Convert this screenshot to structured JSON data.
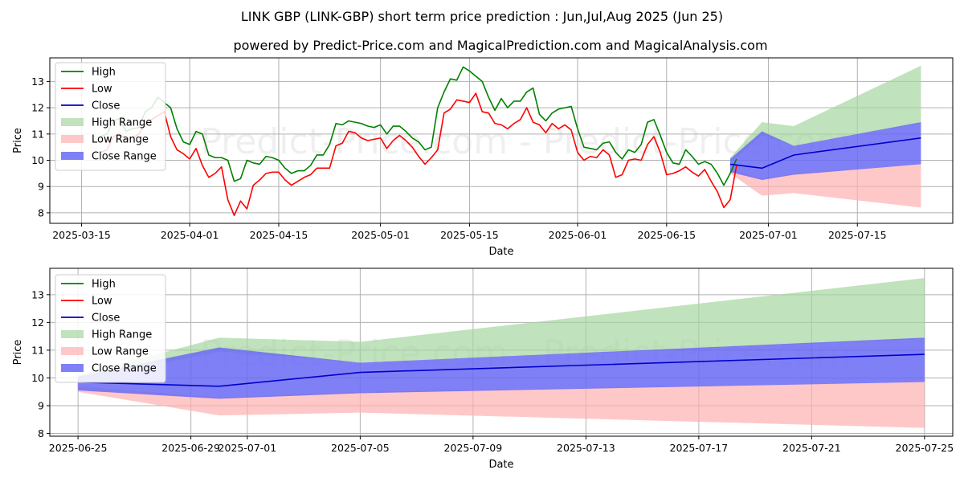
{
  "title": "LINK GBP (LINK-GBP) short term price prediction : Jun,Jul,Aug 2025 (Jun 25)",
  "subtitle": "powered by Predict-Price.com and MagicalPrediction.com and MagicalAnalysis.com",
  "watermark": "Predict-Price.com - Predict-Price.com",
  "colors": {
    "high": "#008000",
    "low": "#ff0000",
    "close": "#0000cc",
    "high_range": "#a5d6a0",
    "low_range": "#ffb0b0",
    "close_range": "#6a6af5"
  },
  "chart_data": [
    {
      "type": "line",
      "name": "full-history-and-forecast",
      "xlabel": "Date",
      "ylabel": "Price",
      "x_range": [
        "2025-03-10",
        "2025-07-30"
      ],
      "ylim": [
        7.6,
        13.9
      ],
      "yticks": [
        8,
        9,
        10,
        11,
        12,
        13
      ],
      "xticks": [
        {
          "date": "2025-03-15",
          "label": "2025-03-15"
        },
        {
          "date": "2025-04-01",
          "label": "2025-04-01"
        },
        {
          "date": "2025-04-15",
          "label": "2025-04-15"
        },
        {
          "date": "2025-05-01",
          "label": "2025-05-01"
        },
        {
          "date": "2025-05-15",
          "label": "2025-05-15"
        },
        {
          "date": "2025-06-01",
          "label": "2025-06-01"
        },
        {
          "date": "2025-06-15",
          "label": "2025-06-15"
        },
        {
          "date": "2025-07-01",
          "label": "2025-07-01"
        },
        {
          "date": "2025-07-15",
          "label": "2025-07-15"
        }
      ],
      "legend": [
        {
          "label": "High",
          "kind": "line",
          "series": "high"
        },
        {
          "label": "Low",
          "kind": "line",
          "series": "low"
        },
        {
          "label": "Close",
          "kind": "line",
          "series": "close"
        },
        {
          "label": "High Range",
          "kind": "patch",
          "series": "high_range"
        },
        {
          "label": "Low Range",
          "kind": "patch",
          "series": "low_range"
        },
        {
          "label": "Close Range",
          "kind": "patch",
          "series": "close_range"
        }
      ],
      "series": [
        {
          "name": "High",
          "key": "high",
          "start": "2025-03-18",
          "values": [
            10.9,
            11.0,
            11.5,
            11.6,
            11.1,
            11.2,
            11.25,
            11.85,
            12.0,
            12.4,
            12.2,
            12.0,
            11.2,
            10.7,
            10.6,
            11.1,
            11.0,
            10.2,
            10.1,
            10.1,
            10.0,
            9.2,
            9.3,
            10.0,
            9.9,
            9.85,
            10.15,
            10.1,
            10.0,
            9.7,
            9.5,
            9.6,
            9.6,
            9.8,
            10.2,
            10.2,
            10.6,
            11.4,
            11.35,
            11.5,
            11.45,
            11.4,
            11.3,
            11.25,
            11.35,
            11.0,
            11.3,
            11.3,
            11.1,
            10.85,
            10.7,
            10.4,
            10.5,
            12.0,
            12.6,
            13.1,
            13.05,
            13.55,
            13.4,
            13.2,
            13.0,
            12.4,
            11.9,
            12.35,
            12.0,
            12.25,
            12.25,
            12.6,
            12.75,
            11.75,
            11.5,
            11.8,
            11.95,
            12.0,
            12.05,
            11.2,
            10.5,
            10.45,
            10.4,
            10.65,
            10.7,
            10.3,
            10.05,
            10.4,
            10.3,
            10.6,
            11.45,
            11.55,
            10.95,
            10.3,
            9.9,
            9.85,
            10.4,
            10.15,
            9.85,
            9.95,
            9.85,
            9.5,
            9.05,
            9.5,
            10.05
          ]
        },
        {
          "name": "Low",
          "key": "low",
          "start": "2025-03-18",
          "values": [
            10.3,
            10.4,
            10.9,
            11.0,
            10.8,
            10.85,
            11.0,
            11.35,
            11.55,
            11.7,
            11.85,
            10.9,
            10.4,
            10.25,
            10.05,
            10.45,
            9.8,
            9.35,
            9.5,
            9.75,
            8.5,
            7.9,
            8.45,
            8.15,
            9.05,
            9.25,
            9.5,
            9.55,
            9.55,
            9.25,
            9.05,
            9.2,
            9.35,
            9.45,
            9.7,
            9.7,
            9.7,
            10.55,
            10.65,
            11.1,
            11.05,
            10.85,
            10.75,
            10.8,
            10.85,
            10.45,
            10.75,
            10.95,
            10.75,
            10.5,
            10.15,
            9.85,
            10.1,
            10.4,
            11.8,
            11.95,
            12.3,
            12.25,
            12.2,
            12.55,
            11.85,
            11.8,
            11.4,
            11.35,
            11.2,
            11.4,
            11.55,
            12.0,
            11.45,
            11.35,
            11.05,
            11.4,
            11.2,
            11.35,
            11.15,
            10.3,
            10.0,
            10.15,
            10.1,
            10.4,
            10.2,
            9.35,
            9.45,
            10.0,
            10.05,
            10.0,
            10.6,
            10.9,
            10.3,
            9.45,
            9.5,
            9.6,
            9.75,
            9.55,
            9.4,
            9.65,
            9.2,
            8.8,
            8.2,
            8.5,
            9.8
          ]
        },
        {
          "name": "Close",
          "key": "close",
          "dates": [
            "2025-06-25",
            "2025-06-30",
            "2025-07-05",
            "2025-07-25"
          ],
          "values": [
            9.85,
            9.7,
            10.2,
            10.85
          ]
        }
      ],
      "ranges": [
        {
          "name": "High Range",
          "key": "high_range",
          "dates": [
            "2025-06-25",
            "2025-06-30",
            "2025-07-05",
            "2025-07-25"
          ],
          "upper": [
            10.1,
            11.45,
            11.3,
            13.6
          ],
          "lower": [
            9.9,
            10.95,
            10.55,
            11.4
          ]
        },
        {
          "name": "Low Range",
          "key": "low_range",
          "dates": [
            "2025-06-25",
            "2025-06-30",
            "2025-07-05",
            "2025-07-25"
          ],
          "upper": [
            9.7,
            9.3,
            9.5,
            9.85
          ],
          "lower": [
            9.5,
            8.65,
            8.75,
            8.2
          ]
        },
        {
          "name": "Close Range",
          "key": "close_range",
          "dates": [
            "2025-06-25",
            "2025-06-30",
            "2025-07-05",
            "2025-07-25"
          ],
          "upper": [
            10.05,
            11.1,
            10.55,
            11.45
          ],
          "lower": [
            9.55,
            9.25,
            9.45,
            9.85
          ]
        }
      ]
    },
    {
      "type": "line",
      "name": "forecast-zoom",
      "xlabel": "Date",
      "ylabel": "Price",
      "x_range": [
        "2025-06-24",
        "2025-07-26"
      ],
      "ylim": [
        7.9,
        13.95
      ],
      "yticks": [
        8,
        9,
        10,
        11,
        12,
        13
      ],
      "xticks": [
        {
          "date": "2025-06-25",
          "label": "2025-06-25"
        },
        {
          "date": "2025-06-29",
          "label": "2025-06-29"
        },
        {
          "date": "2025-07-01",
          "label": "2025-07-01"
        },
        {
          "date": "2025-07-05",
          "label": "2025-07-05"
        },
        {
          "date": "2025-07-09",
          "label": "2025-07-09"
        },
        {
          "date": "2025-07-13",
          "label": "2025-07-13"
        },
        {
          "date": "2025-07-17",
          "label": "2025-07-17"
        },
        {
          "date": "2025-07-21",
          "label": "2025-07-21"
        },
        {
          "date": "2025-07-25",
          "label": "2025-07-25"
        }
      ],
      "legend": [
        {
          "label": "High",
          "kind": "line",
          "series": "high"
        },
        {
          "label": "Low",
          "kind": "line",
          "series": "low"
        },
        {
          "label": "Close",
          "kind": "line",
          "series": "close"
        },
        {
          "label": "High Range",
          "kind": "patch",
          "series": "high_range"
        },
        {
          "label": "Low Range",
          "kind": "patch",
          "series": "low_range"
        },
        {
          "label": "Close Range",
          "kind": "patch",
          "series": "close_range"
        }
      ],
      "series": [
        {
          "name": "Close",
          "key": "close",
          "dates": [
            "2025-06-25",
            "2025-06-30",
            "2025-07-05",
            "2025-07-25"
          ],
          "values": [
            9.85,
            9.7,
            10.2,
            10.85
          ]
        }
      ],
      "ranges": [
        {
          "name": "High Range",
          "key": "high_range",
          "dates": [
            "2025-06-25",
            "2025-06-30",
            "2025-07-05",
            "2025-07-25"
          ],
          "upper": [
            10.1,
            11.45,
            11.3,
            13.6
          ],
          "lower": [
            9.9,
            10.95,
            10.55,
            11.4
          ]
        },
        {
          "name": "Low Range",
          "key": "low_range",
          "dates": [
            "2025-06-25",
            "2025-06-30",
            "2025-07-05",
            "2025-07-25"
          ],
          "upper": [
            9.7,
            9.3,
            9.5,
            9.85
          ],
          "lower": [
            9.5,
            8.65,
            8.75,
            8.2
          ]
        },
        {
          "name": "Close Range",
          "key": "close_range",
          "dates": [
            "2025-06-25",
            "2025-06-30",
            "2025-07-05",
            "2025-07-25"
          ],
          "upper": [
            10.05,
            11.1,
            10.55,
            11.45
          ],
          "lower": [
            9.55,
            9.25,
            9.45,
            9.85
          ]
        }
      ]
    }
  ]
}
